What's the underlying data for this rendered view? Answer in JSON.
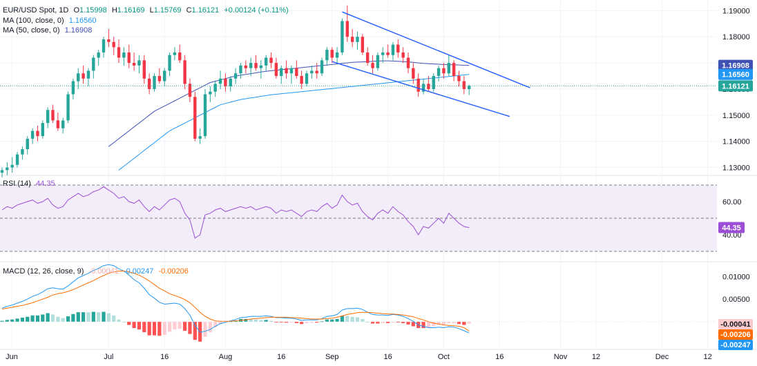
{
  "legend": {
    "symbol": "EUR/USD Spot, 1D",
    "open_label": "O",
    "open": "1.15998",
    "high_label": "H",
    "high": "1.16169",
    "low_label": "L",
    "low": "1.15769",
    "close_label": "C",
    "close": "1.16121",
    "change": "+0.00124 (+0.11%)",
    "ma100_label": "MA (100, close, 0)",
    "ma100_value": "1.16560",
    "ma50_label": "MA (50, close, 0)",
    "ma50_value": "1.16908",
    "rsi_label": "RSI (14)",
    "rsi_value": "44.35",
    "macd_label": "MACD (12, 26, close, 9)",
    "macd_hist": "-0.00041",
    "macd_line": "-0.00247",
    "macd_signal": "-0.00206"
  },
  "colors": {
    "up": "#26a69a",
    "down": "#f23645",
    "ma100": "#2196f3",
    "ma50": "#3f51b5",
    "rsi": "#9c4fd6",
    "macd": "#2196f3",
    "signal": "#ff6d00",
    "channel": "#2962ff"
  },
  "chart_data": [
    {
      "type": "candlestick",
      "title": "EUR/USD Spot, 1D",
      "ylim": [
        1.1275,
        1.193
      ],
      "yticks": [
        "1.13000",
        "1.14000",
        "1.15000",
        "1.16000",
        "1.17000",
        "1.18000",
        "1.19000"
      ],
      "xticks": [
        "Jun",
        "Jul",
        "16",
        "Aug",
        "16",
        "Sep",
        "16",
        "Oct",
        "16",
        "Nov",
        "12",
        "Dec",
        "12"
      ],
      "start_date": "2025-06-02",
      "ohlc": [
        [
          1.128,
          1.13,
          1.1262,
          1.129
        ],
        [
          1.129,
          1.132,
          1.127,
          1.13
        ],
        [
          1.13,
          1.134,
          1.128,
          1.131
        ],
        [
          1.131,
          1.136,
          1.13,
          1.135
        ],
        [
          1.135,
          1.138,
          1.133,
          1.137
        ],
        [
          1.137,
          1.142,
          1.135,
          1.141
        ],
        [
          1.141,
          1.145,
          1.139,
          1.144
        ],
        [
          1.144,
          1.146,
          1.14,
          1.142
        ],
        [
          1.142,
          1.148,
          1.141,
          1.147
        ],
        [
          1.147,
          1.153,
          1.145,
          1.152
        ],
        [
          1.152,
          1.154,
          1.147,
          1.148
        ],
        [
          1.148,
          1.151,
          1.144,
          1.145
        ],
        [
          1.145,
          1.149,
          1.143,
          1.148
        ],
        [
          1.148,
          1.159,
          1.147,
          1.158
        ],
        [
          1.158,
          1.164,
          1.156,
          1.163
        ],
        [
          1.163,
          1.168,
          1.16,
          1.166
        ],
        [
          1.166,
          1.169,
          1.162,
          1.164
        ],
        [
          1.164,
          1.168,
          1.161,
          1.167
        ],
        [
          1.167,
          1.173,
          1.164,
          1.172
        ],
        [
          1.172,
          1.175,
          1.169,
          1.174
        ],
        [
          1.174,
          1.18,
          1.172,
          1.179
        ],
        [
          1.179,
          1.183,
          1.176,
          1.178
        ],
        [
          1.178,
          1.18,
          1.173,
          1.176
        ],
        [
          1.176,
          1.179,
          1.17,
          1.172
        ],
        [
          1.172,
          1.176,
          1.169,
          1.174
        ],
        [
          1.174,
          1.177,
          1.168,
          1.17
        ],
        [
          1.17,
          1.174,
          1.167,
          1.169
        ],
        [
          1.169,
          1.173,
          1.166,
          1.171
        ],
        [
          1.171,
          1.173,
          1.162,
          1.164
        ],
        [
          1.164,
          1.166,
          1.158,
          1.16
        ],
        [
          1.16,
          1.166,
          1.159,
          1.165
        ],
        [
          1.165,
          1.168,
          1.162,
          1.163
        ],
        [
          1.163,
          1.168,
          1.161,
          1.167
        ],
        [
          1.167,
          1.174,
          1.165,
          1.173
        ],
        [
          1.173,
          1.176,
          1.171,
          1.174
        ],
        [
          1.174,
          1.177,
          1.17,
          1.171
        ],
        [
          1.171,
          1.173,
          1.16,
          1.162
        ],
        [
          1.162,
          1.164,
          1.155,
          1.157
        ],
        [
          1.157,
          1.159,
          1.14,
          1.141
        ],
        [
          1.141,
          1.145,
          1.139,
          1.142
        ],
        [
          1.142,
          1.16,
          1.141,
          1.158
        ],
        [
          1.158,
          1.161,
          1.155,
          1.159
        ],
        [
          1.159,
          1.163,
          1.157,
          1.162
        ],
        [
          1.162,
          1.167,
          1.16,
          1.164
        ],
        [
          1.164,
          1.166,
          1.159,
          1.161
        ],
        [
          1.161,
          1.165,
          1.159,
          1.164
        ],
        [
          1.164,
          1.168,
          1.162,
          1.166
        ],
        [
          1.166,
          1.17,
          1.164,
          1.169
        ],
        [
          1.169,
          1.171,
          1.166,
          1.168
        ],
        [
          1.168,
          1.172,
          1.165,
          1.17
        ],
        [
          1.17,
          1.173,
          1.167,
          1.168
        ],
        [
          1.168,
          1.171,
          1.164,
          1.169
        ],
        [
          1.169,
          1.173,
          1.167,
          1.172
        ],
        [
          1.172,
          1.174,
          1.168,
          1.17
        ],
        [
          1.17,
          1.172,
          1.164,
          1.165
        ],
        [
          1.165,
          1.169,
          1.162,
          1.168
        ],
        [
          1.168,
          1.171,
          1.164,
          1.166
        ],
        [
          1.166,
          1.169,
          1.162,
          1.168
        ],
        [
          1.168,
          1.171,
          1.164,
          1.165
        ],
        [
          1.165,
          1.167,
          1.16,
          1.162
        ],
        [
          1.162,
          1.167,
          1.161,
          1.166
        ],
        [
          1.166,
          1.169,
          1.164,
          1.167
        ],
        [
          1.167,
          1.17,
          1.164,
          1.166
        ],
        [
          1.166,
          1.172,
          1.165,
          1.171
        ],
        [
          1.171,
          1.176,
          1.169,
          1.175
        ],
        [
          1.175,
          1.176,
          1.17,
          1.172
        ],
        [
          1.172,
          1.176,
          1.17,
          1.174
        ],
        [
          1.174,
          1.187,
          1.173,
          1.186
        ],
        [
          1.186,
          1.192,
          1.178,
          1.18
        ],
        [
          1.18,
          1.183,
          1.176,
          1.178
        ],
        [
          1.178,
          1.182,
          1.175,
          1.18
        ],
        [
          1.18,
          1.181,
          1.173,
          1.174
        ],
        [
          1.174,
          1.176,
          1.169,
          1.17
        ],
        [
          1.17,
          1.173,
          1.166,
          1.168
        ],
        [
          1.168,
          1.174,
          1.167,
          1.173
        ],
        [
          1.173,
          1.176,
          1.17,
          1.174
        ],
        [
          1.174,
          1.177,
          1.172,
          1.173
        ],
        [
          1.173,
          1.178,
          1.171,
          1.177
        ],
        [
          1.177,
          1.179,
          1.172,
          1.174
        ],
        [
          1.174,
          1.176,
          1.17,
          1.172
        ],
        [
          1.172,
          1.174,
          1.166,
          1.168
        ],
        [
          1.168,
          1.17,
          1.162,
          1.164
        ],
        [
          1.164,
          1.166,
          1.157,
          1.159
        ],
        [
          1.159,
          1.164,
          1.158,
          1.162
        ],
        [
          1.162,
          1.165,
          1.159,
          1.16
        ],
        [
          1.16,
          1.166,
          1.159,
          1.165
        ],
        [
          1.165,
          1.169,
          1.163,
          1.168
        ],
        [
          1.168,
          1.17,
          1.164,
          1.166
        ],
        [
          1.166,
          1.173,
          1.165,
          1.17
        ],
        [
          1.17,
          1.171,
          1.163,
          1.165
        ],
        [
          1.165,
          1.167,
          1.161,
          1.163
        ],
        [
          1.163,
          1.165,
          1.158,
          1.16
        ],
        [
          1.15998,
          1.16169,
          1.15769,
          1.16121
        ]
      ]
    },
    {
      "type": "line",
      "name": "RSI (14)",
      "ylim": [
        25,
        75
      ],
      "levels": [
        70,
        50,
        30
      ],
      "yticks": [
        "40.00",
        "60.00"
      ],
      "values": [
        55,
        57,
        56,
        58,
        59,
        60,
        61,
        59,
        60,
        62,
        58,
        56,
        57,
        61,
        63,
        65,
        63,
        64,
        66,
        67,
        69,
        67,
        65,
        62,
        63,
        60,
        59,
        61,
        57,
        54,
        57,
        55,
        58,
        61,
        62,
        60,
        53,
        49,
        38,
        40,
        52,
        53,
        55,
        56,
        54,
        55,
        56,
        57,
        56,
        57,
        55,
        56,
        57,
        56,
        53,
        55,
        54,
        55,
        53,
        51,
        54,
        55,
        54,
        57,
        59,
        56,
        58,
        64,
        60,
        58,
        59,
        54,
        51,
        49,
        53,
        55,
        53,
        57,
        54,
        52,
        48,
        45,
        40,
        45,
        44,
        47,
        50,
        47,
        53,
        50,
        47,
        45,
        44.35
      ]
    },
    {
      "type": "macd",
      "name": "MACD (12, 26, close, 9)",
      "ylim": [
        -0.0055,
        0.0128
      ],
      "yticks": [
        "0.01000",
        "0.00500"
      ],
      "macd": [
        0.003,
        0.0034,
        0.0037,
        0.0041,
        0.0045,
        0.005,
        0.0056,
        0.006,
        0.0066,
        0.0073,
        0.0075,
        0.0073,
        0.0072,
        0.0079,
        0.0088,
        0.0097,
        0.0102,
        0.0107,
        0.0113,
        0.0118,
        0.0124,
        0.0126,
        0.0124,
        0.0117,
        0.0112,
        0.0103,
        0.0093,
        0.0086,
        0.0074,
        0.006,
        0.0052,
        0.0043,
        0.0039,
        0.004,
        0.0041,
        0.0039,
        0.0029,
        0.0015,
        -0.0008,
        -0.0023,
        -0.0021,
        -0.0017,
        -0.001,
        -0.0004,
        -0.0001,
        0.0002,
        0.0005,
        0.0009,
        0.001,
        0.0012,
        0.0012,
        0.0012,
        0.0013,
        0.0012,
        0.0009,
        0.0009,
        0.0008,
        0.0008,
        0.0006,
        0.0003,
        0.0004,
        0.0004,
        0.0004,
        0.0007,
        0.0012,
        0.0013,
        0.0016,
        0.0026,
        0.0029,
        0.0029,
        0.003,
        0.0027,
        0.0021,
        0.0016,
        0.0015,
        0.0015,
        0.0014,
        0.0016,
        0.0015,
        0.0012,
        0.0007,
        0.0001,
        -0.0007,
        -0.001,
        -0.0013,
        -0.0013,
        -0.0012,
        -0.0013,
        -0.0011,
        -0.0012,
        -0.0015,
        -0.002,
        -0.00247
      ],
      "signal": [
        0.0028,
        0.003,
        0.0032,
        0.0034,
        0.0036,
        0.0039,
        0.0042,
        0.0046,
        0.005,
        0.0054,
        0.0059,
        0.0062,
        0.0064,
        0.0067,
        0.0071,
        0.0076,
        0.0081,
        0.0086,
        0.0091,
        0.0097,
        0.0102,
        0.0107,
        0.011,
        0.0112,
        0.0112,
        0.011,
        0.0107,
        0.0103,
        0.0097,
        0.009,
        0.0082,
        0.0074,
        0.0068,
        0.0062,
        0.0058,
        0.0054,
        0.0049,
        0.0042,
        0.0032,
        0.0021,
        0.0012,
        0.0006,
        0.0002,
        0.0001,
        0.0001,
        0.0001,
        0.0002,
        0.0003,
        0.0004,
        0.0006,
        0.0007,
        0.0008,
        0.0009,
        0.001,
        0.001,
        0.001,
        0.001,
        0.0009,
        0.0009,
        0.0008,
        0.0007,
        0.0006,
        0.0006,
        0.0006,
        0.0007,
        0.0008,
        0.001,
        0.0013,
        0.0016,
        0.0018,
        0.002,
        0.0021,
        0.0021,
        0.002,
        0.0019,
        0.0018,
        0.0017,
        0.0017,
        0.0016,
        0.0015,
        0.0013,
        0.0011,
        0.0007,
        0.0004,
        0.0,
        -0.0003,
        -0.0005,
        -0.0007,
        -0.0008,
        -0.0009,
        -0.001,
        -0.0013,
        -0.00206
      ]
    }
  ],
  "ma100_values": [
    1.129,
    1.1305,
    1.132,
    1.1335,
    1.135,
    1.1365,
    1.138,
    1.1395,
    1.141,
    1.1425,
    1.144,
    1.145,
    1.146,
    1.147,
    1.148,
    1.149,
    1.15,
    1.151,
    1.152,
    1.153,
    1.154,
    1.1545,
    1.155,
    1.1555,
    1.156,
    1.1563,
    1.1566,
    1.1569,
    1.1572,
    1.1575,
    1.1578,
    1.158,
    1.1582,
    1.1584,
    1.1586,
    1.1588,
    1.159,
    1.1592,
    1.1594,
    1.1596,
    1.1598,
    1.16,
    1.1602,
    1.1604,
    1.1606,
    1.1608,
    1.161,
    1.1612,
    1.1614,
    1.1616,
    1.1618,
    1.162,
    1.1622,
    1.1624,
    1.1626,
    1.1628,
    1.163,
    1.1632,
    1.1634,
    1.1636,
    1.1638,
    1.164,
    1.1642,
    1.1644,
    1.1646,
    1.1648,
    1.165,
    1.1652,
    1.1654,
    1.1656
  ],
  "ma100_start": 23,
  "ma50_values": [
    1.138,
    1.1395,
    1.141,
    1.1425,
    1.144,
    1.1455,
    1.147,
    1.1485,
    1.15,
    1.1515,
    1.1525,
    1.1535,
    1.1545,
    1.1555,
    1.1565,
    1.1575,
    1.1585,
    1.1595,
    1.1605,
    1.1615,
    1.1625,
    1.163,
    1.1635,
    1.164,
    1.1645,
    1.165,
    1.1653,
    1.1656,
    1.1659,
    1.1662,
    1.1665,
    1.1668,
    1.167,
    1.1672,
    1.1674,
    1.1676,
    1.1678,
    1.168,
    1.1682,
    1.1684,
    1.1686,
    1.1688,
    1.169,
    1.1692,
    1.1694,
    1.1696,
    1.1698,
    1.17,
    1.1702,
    1.1703,
    1.1704,
    1.1705,
    1.1706,
    1.1707,
    1.1708,
    1.1708,
    1.1707,
    1.1706,
    1.1705,
    1.1704,
    1.1702,
    1.17,
    1.1698,
    1.1697,
    1.1696,
    1.1695,
    1.1694,
    1.1693,
    1.1693,
    1.1692,
    1.1691,
    1.16908
  ],
  "ma50_start": 21,
  "channel": {
    "upper": [
      [
        67,
        1.1895
      ],
      [
        104,
        1.1605
      ]
    ],
    "lower": [
      [
        65,
        1.1705
      ],
      [
        100,
        1.1495
      ]
    ]
  },
  "price_tags": [
    {
      "value": "1.16908",
      "color": "#3f51b5"
    },
    {
      "value": "1.16560",
      "color": "#2196f3"
    },
    {
      "value": "1.16121",
      "color": "#26a69a"
    }
  ],
  "rsi_tag": {
    "value": "44.35",
    "color": "#9c4fd6"
  },
  "macd_tags": [
    {
      "value": "-0.00041",
      "color": "#fccbcd",
      "text": "#131722"
    },
    {
      "value": "-0.00206",
      "color": "#ff6d00",
      "text": "#ffffff"
    },
    {
      "value": "-0.00247",
      "color": "#2196f3",
      "text": "#ffffff"
    }
  ]
}
